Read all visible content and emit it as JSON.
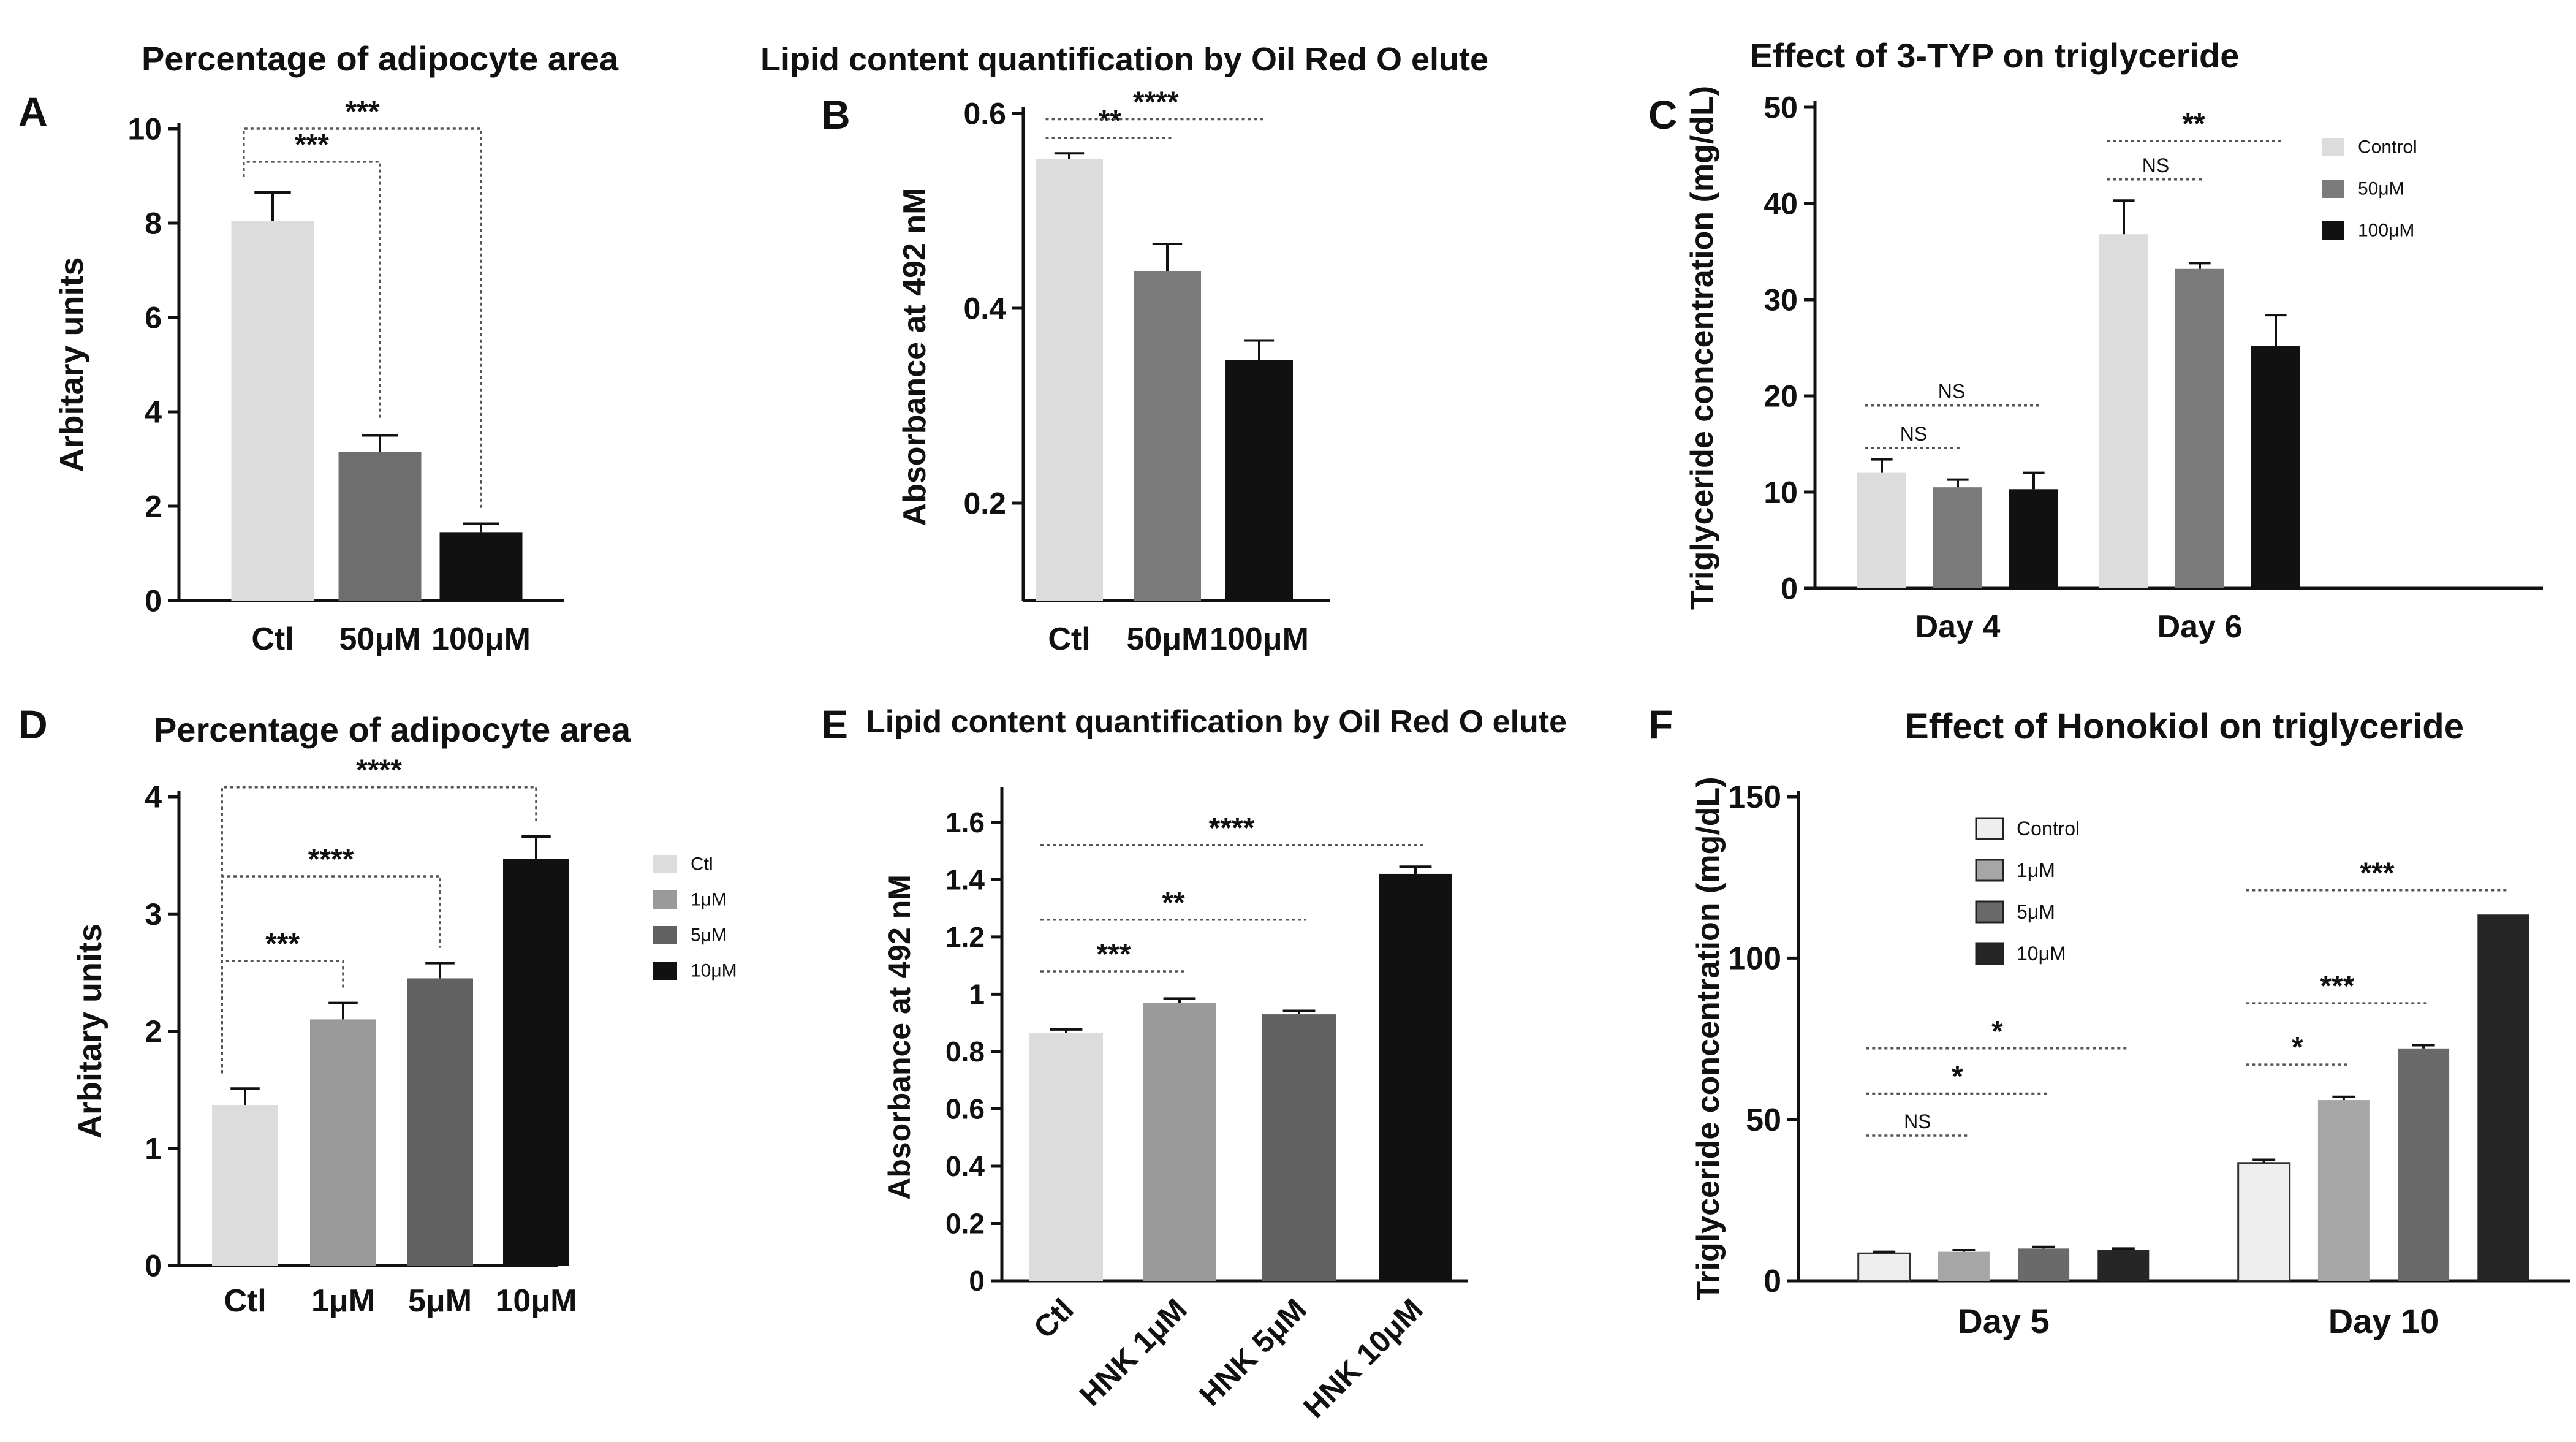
{
  "figure": {
    "colors": {
      "axis": "#111111",
      "bracket": "#555555",
      "errorbar": "#111111"
    },
    "panel_letters": [
      "A",
      "B",
      "C",
      "D",
      "E",
      "F"
    ]
  },
  "chart_data": [
    {
      "panel": "A",
      "type": "bar",
      "title": "Percentage of adipocyte area",
      "xlabel": "",
      "ylabel": "Arbitary units",
      "ylim": [
        0,
        10
      ],
      "yticks": [
        0,
        2,
        4,
        6,
        8,
        10
      ],
      "categories": [
        "Ctl",
        "50μM",
        "100μM"
      ],
      "values": [
        8.05,
        3.15,
        1.45
      ],
      "errors": [
        0.6,
        0.35,
        0.18
      ],
      "colors": [
        "#dcdcdc",
        "#6e6e6e",
        "#111111"
      ],
      "annotations": [
        {
          "label": "***",
          "from": 0,
          "to": 1,
          "y": 9.3
        },
        {
          "label": "***",
          "from": 0,
          "to": 2,
          "y": 10.0
        }
      ]
    },
    {
      "panel": "B",
      "type": "bar",
      "title": "Lipid content quantification by Oil Red O elute",
      "xlabel": "",
      "ylabel": "Absorbance at 492 nM",
      "ylim": [
        0.1,
        0.6
      ],
      "yticks": [
        0.2,
        0.4,
        0.6
      ],
      "categories": [
        "Ctl",
        "50μM",
        "100μM"
      ],
      "values": [
        0.553,
        0.438,
        0.347
      ],
      "errors": [
        0.006,
        0.028,
        0.02
      ],
      "colors": [
        "#dcdcdc",
        "#7a7a7a",
        "#111111"
      ],
      "annotations": [
        {
          "label": "**",
          "from": 0,
          "to": 1,
          "y": 0.575
        },
        {
          "label": "****",
          "from": 0,
          "to": 2,
          "y": 0.594
        }
      ]
    },
    {
      "panel": "C",
      "type": "bar",
      "title": "Effect of 3-TYP on triglyceride",
      "xlabel": "",
      "ylabel": "Triglyceride concentration (mg/dL)",
      "ylim": [
        0,
        50
      ],
      "yticks": [
        0,
        10,
        20,
        30,
        40,
        50
      ],
      "categories": [
        "Day 4",
        "Day 6"
      ],
      "series": [
        {
          "name": "Control",
          "values": [
            12.0,
            36.8
          ],
          "errors": [
            1.4,
            3.5
          ],
          "color": "#dcdcdc"
        },
        {
          "name": "50μM",
          "values": [
            10.5,
            33.2
          ],
          "errors": [
            0.8,
            0.6
          ],
          "color": "#7a7a7a"
        },
        {
          "name": "100μM",
          "values": [
            10.3,
            25.2
          ],
          "errors": [
            1.7,
            3.2
          ],
          "color": "#111111"
        }
      ],
      "legend_position": "top-right",
      "annotations": [
        {
          "label": "NS",
          "group": 0,
          "from": 0,
          "to": 1,
          "y": 14.6
        },
        {
          "label": "NS",
          "group": 0,
          "from": 0,
          "to": 2,
          "y": 19.0
        },
        {
          "label": "NS",
          "group": 1,
          "from": 0,
          "to": 1,
          "y": 42.5
        },
        {
          "label": "**",
          "group": 1,
          "from": 0,
          "to": 2,
          "y": 46.5
        }
      ]
    },
    {
      "panel": "D",
      "type": "bar",
      "title": "Percentage of adipocyte area",
      "xlabel": "",
      "ylabel": "Arbitary units",
      "ylim": [
        0,
        4
      ],
      "yticks": [
        0,
        1,
        2,
        3,
        4
      ],
      "categories": [
        "Ctl",
        "1μM",
        "5μM",
        "10μM"
      ],
      "values": [
        1.37,
        2.1,
        2.45,
        3.47
      ],
      "errors": [
        0.14,
        0.14,
        0.13,
        0.19
      ],
      "colors": [
        "#dcdcdc",
        "#9a9a9a",
        "#616161",
        "#111111"
      ],
      "legend": [
        "Ctl",
        "1μM",
        "5μM",
        "10μM"
      ],
      "legend_position": "right",
      "annotations": [
        {
          "label": "***",
          "from": 0,
          "to": 1,
          "y": 2.6
        },
        {
          "label": "****",
          "from": 0,
          "to": 2,
          "y": 3.32
        },
        {
          "label": "****",
          "from": 0,
          "to": 3,
          "y": 4.08
        }
      ]
    },
    {
      "panel": "E",
      "type": "bar",
      "title": "Lipid content quantification by Oil Red O elute",
      "xlabel": "",
      "ylabel": "Absorbance at 492 nM",
      "ylim": [
        0,
        1.7
      ],
      "yticks": [
        0.0,
        0.2,
        0.4,
        0.6,
        0.8,
        1.0,
        1.2,
        1.4,
        1.6
      ],
      "categories": [
        "Ctl",
        "HNK 1μM",
        "HNK 5μM",
        "HNK 10μM"
      ],
      "values": [
        0.865,
        0.97,
        0.93,
        1.42
      ],
      "errors": [
        0.012,
        0.015,
        0.012,
        0.025
      ],
      "colors": [
        "#dcdcdc",
        "#9a9a9a",
        "#616161",
        "#111111"
      ],
      "annotations": [
        {
          "label": "***",
          "from": 0,
          "to": 1,
          "y": 1.08
        },
        {
          "label": "**",
          "from": 0,
          "to": 2,
          "y": 1.26
        },
        {
          "label": "****",
          "from": 0,
          "to": 3,
          "y": 1.52
        }
      ]
    },
    {
      "panel": "F",
      "type": "bar",
      "title": "Effect of Honokiol on triglyceride",
      "xlabel": "",
      "ylabel": "Triglyceride concentration (mg/dL)",
      "ylim": [
        0,
        150
      ],
      "yticks": [
        0,
        50,
        100,
        150
      ],
      "categories": [
        "Day 5",
        "Day 10"
      ],
      "series": [
        {
          "name": "Control",
          "values": [
            8.5,
            36.5
          ],
          "errors": [
            0.5,
            1.0
          ],
          "color": "#eeeeee"
        },
        {
          "name": "1μM",
          "values": [
            9.0,
            56.0
          ],
          "errors": [
            0.5,
            1.0
          ],
          "color": "#a6a6a6"
        },
        {
          "name": "5μM",
          "values": [
            10.0,
            72.0
          ],
          "errors": [
            0.5,
            1.0
          ],
          "color": "#6a6a6a"
        },
        {
          "name": "10μM",
          "values": [
            9.5,
            113.5
          ],
          "errors": [
            0.5,
            0.0
          ],
          "color": "#262626"
        }
      ],
      "legend_position": "upper-left",
      "annotations": [
        {
          "label": "NS",
          "group": 0,
          "from": 0,
          "to": 1,
          "y": 45
        },
        {
          "label": "*",
          "group": 0,
          "from": 0,
          "to": 2,
          "y": 58
        },
        {
          "label": "*",
          "group": 0,
          "from": 0,
          "to": 3,
          "y": 72
        },
        {
          "label": "*",
          "group": 1,
          "from": 0,
          "to": 1,
          "y": 67
        },
        {
          "label": "***",
          "group": 1,
          "from": 0,
          "to": 2,
          "y": 86
        },
        {
          "label": "***",
          "group": 1,
          "from": 0,
          "to": 3,
          "y": 121
        }
      ]
    }
  ]
}
